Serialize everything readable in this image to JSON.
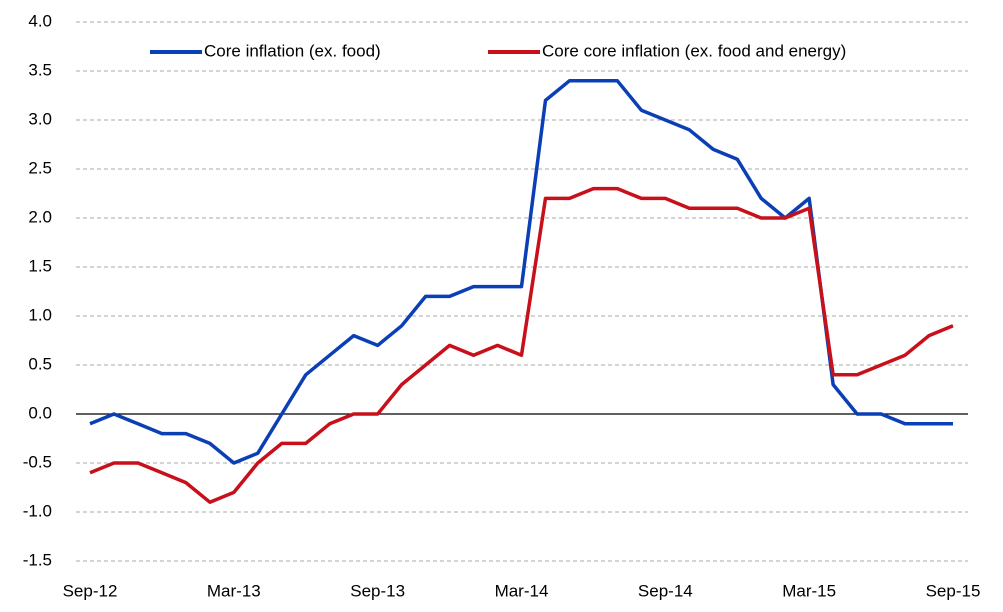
{
  "chart_data": {
    "type": "line",
    "categories": [
      "Sep-12",
      null,
      null,
      null,
      null,
      null,
      "Mar-13",
      null,
      null,
      null,
      null,
      null,
      "Sep-13",
      null,
      null,
      null,
      null,
      null,
      "Mar-14",
      null,
      null,
      null,
      null,
      null,
      "Sep-14",
      null,
      null,
      null,
      null,
      null,
      "Mar-15",
      null,
      null,
      null,
      null,
      null,
      "Sep-15"
    ],
    "series": [
      {
        "name": "Core inflation (ex. food)",
        "color": "#0b3fb5",
        "values": [
          -0.1,
          0.0,
          -0.1,
          -0.2,
          -0.2,
          -0.3,
          -0.5,
          -0.4,
          0.0,
          0.4,
          0.6,
          0.8,
          0.7,
          0.9,
          1.2,
          1.2,
          1.3,
          1.3,
          1.3,
          3.2,
          3.4,
          3.4,
          3.4,
          3.1,
          3.0,
          2.9,
          2.7,
          2.6,
          2.2,
          2.0,
          2.2,
          0.3,
          0.0,
          0.0,
          -0.1,
          -0.1,
          -0.1
        ]
      },
      {
        "name": "Core core inflation (ex. food and energy)",
        "color": "#c8101a",
        "values": [
          -0.6,
          -0.5,
          -0.5,
          -0.6,
          -0.7,
          -0.9,
          -0.8,
          -0.5,
          -0.3,
          -0.3,
          -0.1,
          0.0,
          0.0,
          0.3,
          0.5,
          0.7,
          0.6,
          0.7,
          0.6,
          2.2,
          2.2,
          2.3,
          2.3,
          2.2,
          2.2,
          2.1,
          2.1,
          2.1,
          2.0,
          2.0,
          2.1,
          0.4,
          0.4,
          0.5,
          0.6,
          0.8,
          0.9
        ]
      }
    ],
    "ylim": [
      -1.5,
      4.0
    ],
    "yticks": [
      -1.5,
      {
        "value": -1.0,
        "label": "-1.0"
      },
      -0.5,
      {
        "value": 0.0,
        "label": "0.0"
      },
      0.5,
      {
        "value": 1.0,
        "label": "1.0"
      },
      1.5,
      {
        "value": 2.0,
        "label": "2.0"
      },
      2.5,
      {
        "value": 3.0,
        "label": "3.0"
      },
      3.5,
      {
        "value": 4.0,
        "label": "4.0"
      }
    ],
    "grid": true,
    "legend": "top"
  }
}
